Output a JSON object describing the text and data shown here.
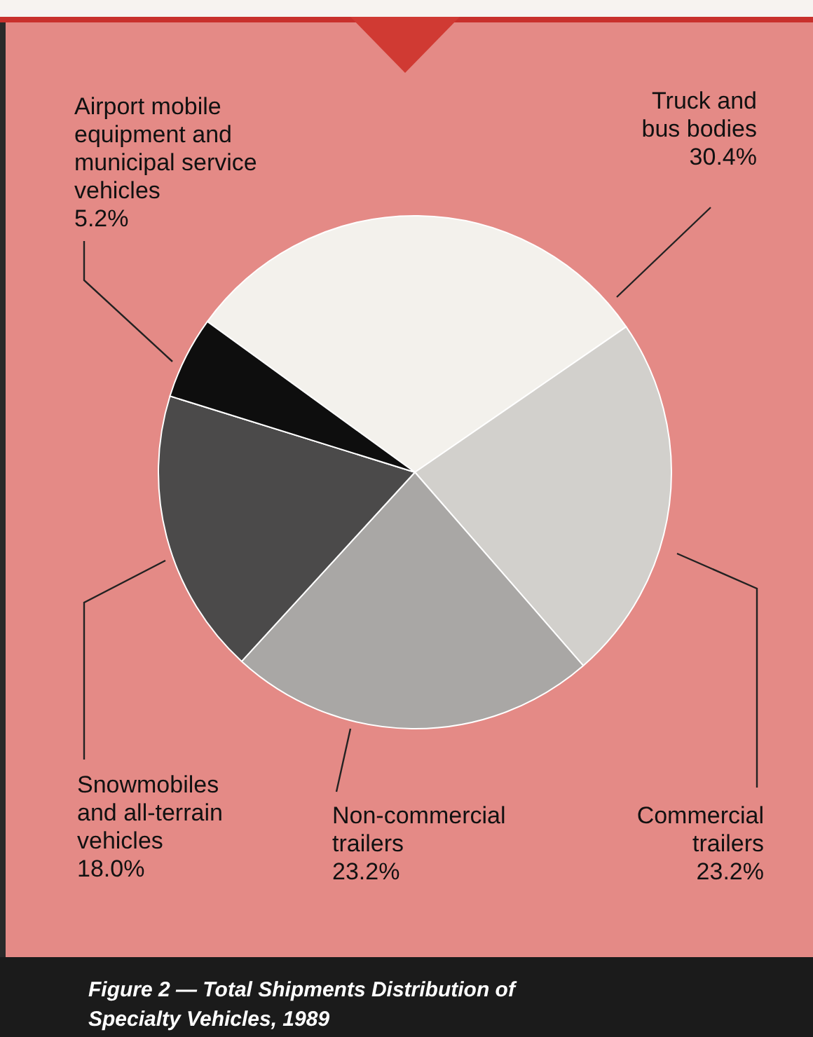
{
  "chart_data": {
    "type": "pie",
    "title": "Figure 2 — Total Shipments Distribution of\nSpecialty Vehicles, 1989",
    "categories": [
      "Truck and\nbus bodies",
      "Commercial\ntrailers",
      "Non-commercial\ntrailers",
      "Snowmobiles\nand all-terrain\nvehicles",
      "Airport mobile\nequipment and\nmunicipal service\nvehicles"
    ],
    "values": [
      30.4,
      23.2,
      23.2,
      18.0,
      5.2
    ],
    "value_labels": [
      "30.4%",
      "23.2%",
      "23.2%",
      "18.0%",
      "5.2%"
    ],
    "colors": [
      "#f3f1ec",
      "#d2d0cc",
      "#a9a7a5",
      "#4b4a4a",
      "#0e0e0e"
    ],
    "legend": false
  }
}
